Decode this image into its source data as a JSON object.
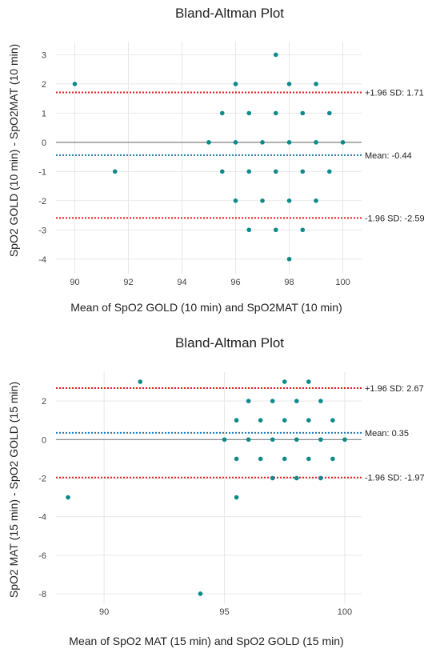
{
  "chart_data": [
    {
      "type": "scatter",
      "title": "Bland-Altman Plot",
      "xlabel": "Mean of SpO2 GOLD (10 min) and SpO2MAT (10 min)",
      "ylabel": "SpO2 GOLD (10 min) - SpO2MAT (10 min)",
      "xlim": [
        89.3,
        100.7
      ],
      "ylim": [
        -4.5,
        3.45
      ],
      "xticks": [
        90,
        92,
        94,
        96,
        98,
        100
      ],
      "yticks": [
        3,
        2,
        1,
        0,
        -1,
        -2,
        -3,
        -4
      ],
      "grid": true,
      "reference_lines": [
        {
          "y": 1.71,
          "label": "+1.96 SD: 1.71",
          "color": "#e31a1c",
          "style": "dotted"
        },
        {
          "y": -0.44,
          "label": "Mean: -0.44",
          "color": "#1f78b4",
          "style": "dotted"
        },
        {
          "y": -2.59,
          "label": "-1.96 SD: -2.59",
          "color": "#e31a1c",
          "style": "dotted"
        },
        {
          "y": 0,
          "label": "",
          "color": "#808080",
          "style": "solid"
        }
      ],
      "point_color": "#0e8a8a",
      "points": [
        {
          "x": 90,
          "y": 2
        },
        {
          "x": 96,
          "y": 2
        },
        {
          "x": 97.5,
          "y": 3
        },
        {
          "x": 98,
          "y": 2
        },
        {
          "x": 99,
          "y": 2
        },
        {
          "x": 95.5,
          "y": 1
        },
        {
          "x": 96.5,
          "y": 1
        },
        {
          "x": 97.5,
          "y": 1
        },
        {
          "x": 98.5,
          "y": 1
        },
        {
          "x": 99.5,
          "y": 1
        },
        {
          "x": 95,
          "y": 0
        },
        {
          "x": 96,
          "y": 0
        },
        {
          "x": 97,
          "y": 0
        },
        {
          "x": 98,
          "y": 0
        },
        {
          "x": 99,
          "y": 0
        },
        {
          "x": 100,
          "y": 0
        },
        {
          "x": 91.5,
          "y": -1
        },
        {
          "x": 95.5,
          "y": -1
        },
        {
          "x": 96.5,
          "y": -1
        },
        {
          "x": 97.5,
          "y": -1
        },
        {
          "x": 98.5,
          "y": -1
        },
        {
          "x": 99.5,
          "y": -1
        },
        {
          "x": 96,
          "y": -2
        },
        {
          "x": 97,
          "y": -2
        },
        {
          "x": 98,
          "y": -2
        },
        {
          "x": 99,
          "y": -2
        },
        {
          "x": 96.5,
          "y": -3
        },
        {
          "x": 97.5,
          "y": -3
        },
        {
          "x": 98.5,
          "y": -3
        },
        {
          "x": 98,
          "y": -4
        }
      ]
    },
    {
      "type": "scatter",
      "title": "Bland-Altman Plot",
      "xlabel": "Mean of SpO2 MAT (15 min) and SpO2 GOLD (15 min)",
      "ylabel": "SpO2 MAT (15 min) - SpO2 GOLD (15 min)",
      "xlim": [
        88,
        100.7
      ],
      "ylim": [
        -8.5,
        3.5
      ],
      "xticks": [
        90,
        95,
        100
      ],
      "yticks": [
        2,
        0,
        -2,
        -4,
        -6,
        -8
      ],
      "grid": true,
      "reference_lines": [
        {
          "y": 2.67,
          "label": "+1.96 SD: 2.67",
          "color": "#e31a1c",
          "style": "dotted"
        },
        {
          "y": 0.35,
          "label": "Mean: 0.35",
          "color": "#1f78b4",
          "style": "dotted"
        },
        {
          "y": -1.97,
          "label": "-1.96 SD: -1.97",
          "color": "#e31a1c",
          "style": "dotted"
        },
        {
          "y": 0,
          "label": "",
          "color": "#808080",
          "style": "solid"
        }
      ],
      "point_color": "#0e8a8a",
      "points": [
        {
          "x": 91.5,
          "y": 3
        },
        {
          "x": 97.5,
          "y": 3
        },
        {
          "x": 98.5,
          "y": 3
        },
        {
          "x": 96,
          "y": 2
        },
        {
          "x": 97,
          "y": 2
        },
        {
          "x": 98,
          "y": 2
        },
        {
          "x": 99,
          "y": 2
        },
        {
          "x": 95.5,
          "y": 1
        },
        {
          "x": 96.5,
          "y": 1
        },
        {
          "x": 97.5,
          "y": 1
        },
        {
          "x": 98.5,
          "y": 1
        },
        {
          "x": 99.5,
          "y": 1
        },
        {
          "x": 95,
          "y": 0
        },
        {
          "x": 96,
          "y": 0
        },
        {
          "x": 97,
          "y": 0
        },
        {
          "x": 98,
          "y": 0
        },
        {
          "x": 99,
          "y": 0
        },
        {
          "x": 100,
          "y": 0
        },
        {
          "x": 95.5,
          "y": -1
        },
        {
          "x": 96.5,
          "y": -1
        },
        {
          "x": 97.5,
          "y": -1
        },
        {
          "x": 98.5,
          "y": -1
        },
        {
          "x": 99.5,
          "y": -1
        },
        {
          "x": 97,
          "y": -2
        },
        {
          "x": 98,
          "y": -2
        },
        {
          "x": 99,
          "y": -2
        },
        {
          "x": 88.5,
          "y": -3
        },
        {
          "x": 95.5,
          "y": -3
        },
        {
          "x": 94,
          "y": -8
        }
      ]
    }
  ]
}
